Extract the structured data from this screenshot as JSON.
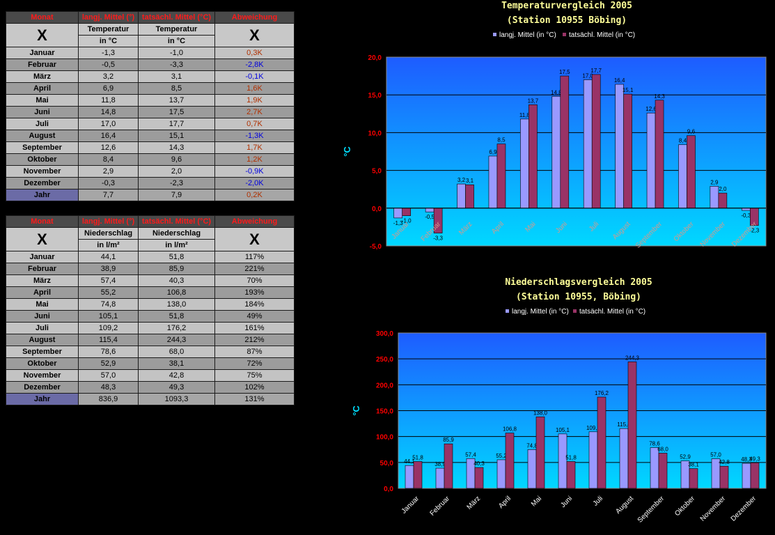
{
  "table1": {
    "headers": [
      "Monat",
      "langj. Mittel (°)",
      "tatsächl. Mittel (°C)",
      "Abweichung"
    ],
    "sub": {
      "x_left": "X",
      "col1_line1": "Temperatur",
      "col1_line2": "in °C",
      "col2_line1": "Temperatur",
      "col2_line2": "in °C",
      "x_right": "X"
    },
    "rows": [
      {
        "month": "Januar",
        "a": "-1,3",
        "b": "-1,0",
        "d": "0,3K",
        "sign": "pos"
      },
      {
        "month": "Februar",
        "a": "-0,5",
        "b": "-3,3",
        "d": "-2,8K",
        "sign": "neg"
      },
      {
        "month": "März",
        "a": "3,2",
        "b": "3,1",
        "d": "-0,1K",
        "sign": "neg"
      },
      {
        "month": "April",
        "a": "6,9",
        "b": "8,5",
        "d": "1,6K",
        "sign": "pos"
      },
      {
        "month": "Mai",
        "a": "11,8",
        "b": "13,7",
        "d": "1,9K",
        "sign": "pos"
      },
      {
        "month": "Juni",
        "a": "14,8",
        "b": "17,5",
        "d": "2,7K",
        "sign": "pos"
      },
      {
        "month": "Juli",
        "a": "17,0",
        "b": "17,7",
        "d": "0,7K",
        "sign": "pos"
      },
      {
        "month": "August",
        "a": "16,4",
        "b": "15,1",
        "d": "-1,3K",
        "sign": "neg"
      },
      {
        "month": "September",
        "a": "12,6",
        "b": "14,3",
        "d": "1,7K",
        "sign": "pos"
      },
      {
        "month": "Oktober",
        "a": "8,4",
        "b": "9,6",
        "d": "1,2K",
        "sign": "pos"
      },
      {
        "month": "November",
        "a": "2,9",
        "b": "2,0",
        "d": "-0,9K",
        "sign": "neg"
      },
      {
        "month": "Dezember",
        "a": "-0,3",
        "b": "-2,3",
        "d": "-2,0K",
        "sign": "neg"
      }
    ],
    "total": {
      "month": "Jahr",
      "a": "7,7",
      "b": "7,9",
      "d": "0,2K",
      "sign": "pos"
    }
  },
  "table2": {
    "headers": [
      "Monat",
      "langj. Mittel (°)",
      "tatsächl. Mittel (°C)",
      "Abweichung"
    ],
    "sub": {
      "x_left": "X",
      "col1_line1": "Niederschlag",
      "col1_line2": "in l/m²",
      "col2_line1": "Niederschlag",
      "col2_line2": "in l/m²",
      "x_right": "X"
    },
    "rows": [
      {
        "month": "Januar",
        "a": "44,1",
        "b": "51,8",
        "d": "117%"
      },
      {
        "month": "Februar",
        "a": "38,9",
        "b": "85,9",
        "d": "221%"
      },
      {
        "month": "März",
        "a": "57,4",
        "b": "40,3",
        "d": "70%"
      },
      {
        "month": "April",
        "a": "55,2",
        "b": "106,8",
        "d": "193%"
      },
      {
        "month": "Mai",
        "a": "74,8",
        "b": "138,0",
        "d": "184%"
      },
      {
        "month": "Juni",
        "a": "105,1",
        "b": "51,8",
        "d": "49%"
      },
      {
        "month": "Juli",
        "a": "109,2",
        "b": "176,2",
        "d": "161%"
      },
      {
        "month": "August",
        "a": "115,4",
        "b": "244,3",
        "d": "212%"
      },
      {
        "month": "September",
        "a": "78,6",
        "b": "68,0",
        "d": "87%"
      },
      {
        "month": "Oktober",
        "a": "52,9",
        "b": "38,1",
        "d": "72%"
      },
      {
        "month": "November",
        "a": "57,0",
        "b": "42,8",
        "d": "75%"
      },
      {
        "month": "Dezember",
        "a": "48,3",
        "b": "49,3",
        "d": "102%"
      }
    ],
    "total": {
      "month": "Jahr",
      "a": "836,9",
      "b": "1093,3",
      "d": "131%"
    }
  },
  "colors": {
    "series1": "#9999ff",
    "series2": "#993366",
    "pos": "#b03000",
    "neg": "#0000e0",
    "tick": "#ff0000",
    "title": "#ffff99"
  },
  "chart_data": [
    {
      "type": "bar",
      "title": "Temperaturvergleich 2005",
      "subtitle": "(Station 10955 Böbing)",
      "ylabel": "°C",
      "xlabel": "",
      "ylim": [
        -5,
        20
      ],
      "yticks": [
        "-5,0",
        "0,0",
        "5,0",
        "10,0",
        "15,0",
        "20,0"
      ],
      "grid": true,
      "legend": "top",
      "categories": [
        "Januar",
        "Februar",
        "März",
        "April",
        "Mai",
        "Juni",
        "Juli",
        "August",
        "September",
        "Oktober",
        "November",
        "Dezember"
      ],
      "series": [
        {
          "name": "langj. Mittel (in °C)",
          "values": [
            -1.3,
            -0.5,
            3.2,
            6.9,
            11.8,
            14.8,
            17.0,
            16.4,
            12.6,
            8.4,
            2.9,
            -0.3
          ],
          "labels": [
            "-1,3",
            "-0,5",
            "3,2",
            "6,9",
            "11,8",
            "14,8",
            "17,0",
            "16,4",
            "12,6",
            "8,4",
            "2,9",
            "-0,3"
          ]
        },
        {
          "name": "tatsächl. Mittel (in °C)",
          "values": [
            -1.0,
            -3.3,
            3.1,
            8.5,
            13.7,
            17.5,
            17.7,
            15.1,
            14.3,
            9.6,
            2.0,
            -2.3
          ],
          "labels": [
            "-1,0",
            "-3,3",
            "3,1",
            "8,5",
            "13,7",
            "17,5",
            "17,7",
            "15,1",
            "14,3",
            "9,6",
            "2,0",
            "-2,3"
          ]
        }
      ]
    },
    {
      "type": "bar",
      "title": "Niederschlagsvergleich 2005",
      "subtitle": "(Station 10955, Böbing)",
      "ylabel": "°C",
      "xlabel": "",
      "ylim": [
        0,
        300
      ],
      "yticks": [
        "0,0",
        "50,0",
        "100,0",
        "150,0",
        "200,0",
        "250,0",
        "300,0"
      ],
      "grid": true,
      "legend": "top",
      "categories": [
        "Januar",
        "Februar",
        "März",
        "April",
        "Mai",
        "Juni",
        "Juli",
        "August",
        "September",
        "Oktober",
        "November",
        "Dezember"
      ],
      "series": [
        {
          "name": "langj. Mittel (in °C)",
          "values": [
            44.1,
            38.9,
            57.4,
            55.2,
            74.8,
            105.1,
            109.2,
            115.4,
            78.6,
            52.9,
            57.0,
            48.3
          ],
          "labels": [
            "44,1",
            "38,9",
            "57,4",
            "55,2",
            "74,8",
            "105,1",
            "109,2",
            "115,4",
            "78,6",
            "52,9",
            "57,0",
            "48,3"
          ]
        },
        {
          "name": "tatsächl. Mittel (in °C)",
          "values": [
            51.8,
            85.9,
            40.3,
            106.8,
            138.0,
            51.8,
            176.2,
            244.3,
            68.0,
            38.1,
            42.8,
            49.3
          ],
          "labels": [
            "51,8",
            "85,9",
            "40,3",
            "106,8",
            "138,0",
            "51,8",
            "176,2",
            "244,3",
            "68,0",
            "38,1",
            "42,8",
            "49,3"
          ]
        }
      ]
    }
  ]
}
